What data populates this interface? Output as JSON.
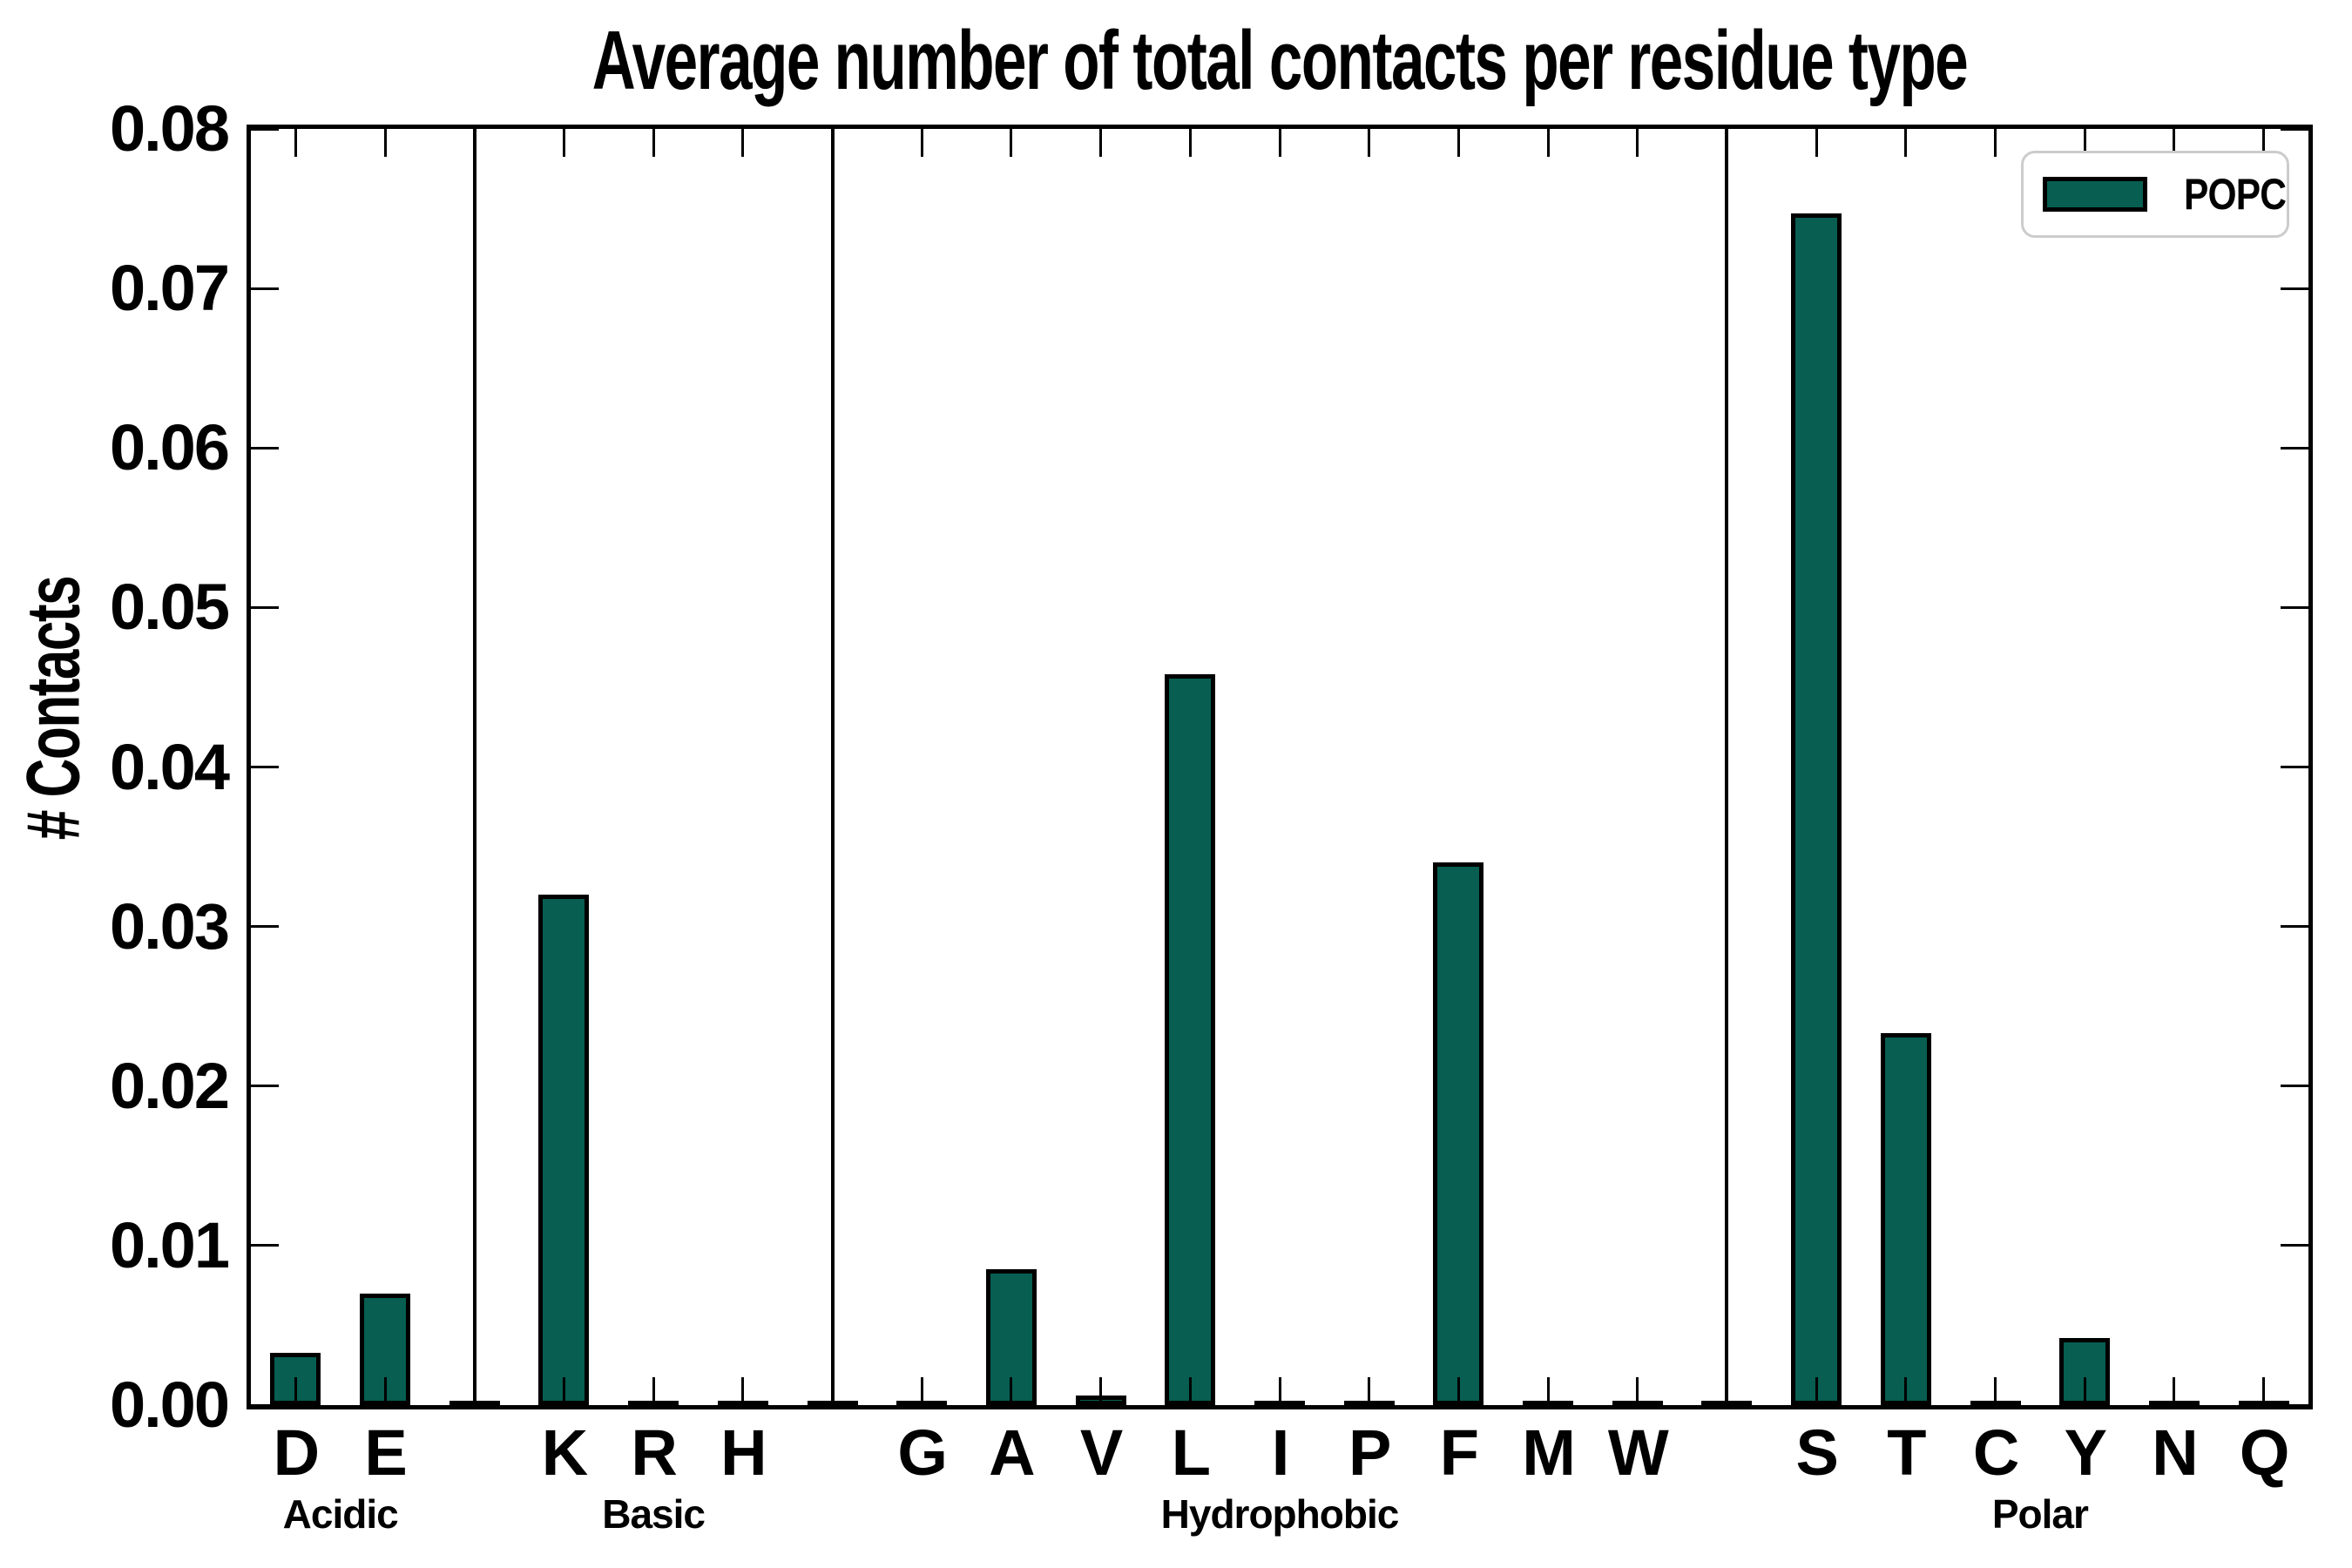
{
  "colors": {
    "bar_fill": "#075e51",
    "bar_edge": "#000000",
    "axis": "#000000",
    "legend_border": "#cccccc",
    "background": "#ffffff"
  },
  "legend": {
    "label": "POPC"
  },
  "chart_data": {
    "type": "bar",
    "title": "Average number of total contacts per residue type",
    "xlabel": "",
    "ylabel": "# Contacts",
    "ylim": [
      0,
      0.08
    ],
    "ytick_step": 0.01,
    "ytick_labels": [
      "0.00",
      "0.01",
      "0.02",
      "0.03",
      "0.04",
      "0.05",
      "0.06",
      "0.07",
      "0.08"
    ],
    "grid": false,
    "legend_position": "upper right",
    "legend_entries": [
      "POPC"
    ],
    "series_name": "POPC",
    "group_separator_lines": true,
    "groups": [
      {
        "label": "Acidic",
        "categories": [
          "D",
          "E"
        ],
        "values": [
          0.0033,
          0.007
        ]
      },
      {
        "label": "Basic",
        "categories": [
          "K",
          "R",
          "H"
        ],
        "values": [
          0.032,
          0.0,
          0.0
        ]
      },
      {
        "label": "Hydrophobic",
        "categories": [
          "G",
          "A",
          "V",
          "L",
          "I",
          "P",
          "F",
          "M",
          "W"
        ],
        "values": [
          0.0,
          0.0085,
          0.0006,
          0.0458,
          0.0,
          0.0,
          0.034,
          0.0,
          0.0
        ]
      },
      {
        "label": "Polar",
        "categories": [
          "S",
          "T",
          "C",
          "Y",
          "N",
          "Q"
        ],
        "values": [
          0.0747,
          0.0233,
          0.0,
          0.0042,
          0.0,
          0.0003
        ]
      }
    ]
  }
}
